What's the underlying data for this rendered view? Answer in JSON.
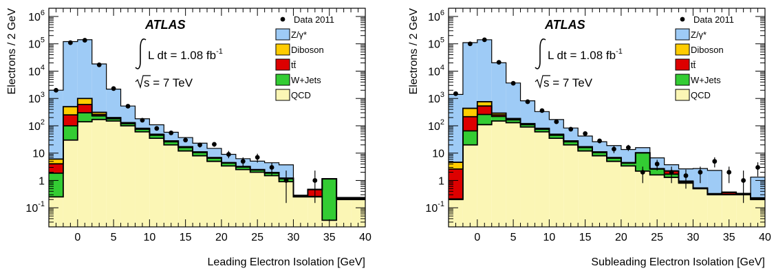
{
  "chart_data": [
    {
      "type": "bar",
      "stacked": true,
      "histogram": true,
      "bin_width": 2,
      "x": [
        -3,
        -1,
        1,
        3,
        5,
        7,
        9,
        11,
        13,
        15,
        17,
        19,
        21,
        23,
        25,
        27,
        29,
        31,
        33,
        35,
        37,
        39
      ],
      "xlabel": "Leading Electron Isolation [GeV]",
      "ylabel": "Electrons / 2 GeV",
      "xlim": [
        -4,
        40
      ],
      "ylim": [
        0.02,
        2000000
      ],
      "log_y": true,
      "x_ticks": [
        0,
        5,
        10,
        15,
        20,
        25,
        30,
        35,
        40
      ],
      "x_tick_labels": [
        "0",
        "5",
        "10",
        "15",
        "20",
        "25",
        "30",
        "35",
        "40"
      ],
      "y_tick_labels": [
        {
          "value": 1000000,
          "mantissa": "10",
          "exp": "6"
        },
        {
          "value": 100000,
          "mantissa": "10",
          "exp": "5"
        },
        {
          "value": 10000,
          "mantissa": "10",
          "exp": "4"
        },
        {
          "value": 1000,
          "mantissa": "10",
          "exp": "3"
        },
        {
          "value": 100,
          "mantissa": "10",
          "exp": "2"
        },
        {
          "value": 10,
          "mantissa": "10",
          "exp": ""
        },
        {
          "value": 1,
          "mantissa": "1",
          "exp": ""
        },
        {
          "value": 0.1,
          "mantissa": "10",
          "exp": "-1"
        }
      ],
      "series": [
        {
          "name": "QCD",
          "color": "#fbf6b5",
          "values": [
            0.25,
            30,
            140,
            170,
            150,
            100,
            60,
            35,
            20,
            12,
            8,
            5,
            3.4,
            2.5,
            2.0,
            1.5,
            0.9,
            0.25,
            0.25,
            0.035,
            0.2,
            0.2
          ]
        },
        {
          "name": "W+Jets",
          "color": "#33cc33",
          "values": [
            1.6,
            70,
            160,
            60,
            30,
            20,
            15,
            10,
            6,
            4,
            2.5,
            1.5,
            0.9,
            0.6,
            0.4,
            0.35,
            0.25,
            0.01,
            0.01,
            1.1,
            0.01,
            0.01
          ]
        },
        {
          "name": "tt̄",
          "color": "#dd0000",
          "values": [
            2.2,
            150,
            300,
            30,
            10,
            5,
            3,
            2,
            1,
            0.6,
            0.3,
            0.2,
            0.1,
            0.05,
            0.05,
            0.05,
            0.02,
            0.01,
            0.2,
            0.01,
            0.01,
            0.01
          ]
        },
        {
          "name": "Diboson",
          "color": "#ffcc00",
          "values": [
            2.0,
            250,
            400,
            50,
            10,
            5,
            3,
            2,
            1,
            0.5,
            0.3,
            0.2,
            0.1,
            0.1,
            0.05,
            0.05,
            0.05,
            0.01,
            0.01,
            0.01,
            0.01,
            0.01
          ]
        },
        {
          "name": "Z/γ*",
          "color": "#9ecbf6",
          "values": [
            2000,
            120000,
            140000,
            18000,
            2000,
            400,
            100,
            60,
            30,
            20,
            12,
            8,
            4.5,
            3,
            2.6,
            2.5,
            2.5,
            0.01,
            0.01,
            0.01,
            0.01,
            0.01
          ]
        }
      ],
      "data_series": {
        "name": "Data 2011",
        "x": [
          -3,
          -1,
          1,
          3,
          5,
          7,
          9,
          11,
          13,
          15,
          17,
          19,
          21,
          23,
          25,
          27,
          29,
          33
        ],
        "y": [
          2000,
          110000,
          135000,
          17000,
          2300,
          520,
          160,
          80,
          55,
          30,
          20,
          21,
          9,
          5,
          7,
          3,
          1,
          1
        ],
        "y_lo": [
          1900,
          109000,
          134000,
          16800,
          2250,
          500,
          148,
          72,
          48,
          25,
          16,
          17,
          6.5,
          3,
          4.5,
          1.5,
          0.15,
          0.15
        ],
        "y_hi": [
          2100,
          111000,
          136000,
          17200,
          2350,
          540,
          172,
          88,
          62,
          35,
          24,
          25,
          12,
          7,
          9.5,
          4.5,
          2.3,
          2.3
        ]
      },
      "legend": {
        "position": "top-right",
        "entries": [
          "Data 2011",
          "Z/γ*",
          "Diboson",
          "tt̄",
          "W+Jets",
          "QCD"
        ]
      },
      "annotations": {
        "experiment": "ATLAS",
        "luminosity": "L dt = 1.08 fb",
        "lumi_exp": "-1",
        "energy": "s = 7 TeV"
      }
    },
    {
      "type": "bar",
      "stacked": true,
      "histogram": true,
      "bin_width": 2,
      "x": [
        -3,
        -1,
        1,
        3,
        5,
        7,
        9,
        11,
        13,
        15,
        17,
        19,
        21,
        23,
        25,
        27,
        29,
        31,
        33,
        35,
        37,
        39
      ],
      "xlabel": "Subleading Electron Isolation [GeV]",
      "ylabel": "Electrons / 2 GeV",
      "xlim": [
        -4,
        40
      ],
      "ylim": [
        0.02,
        2000000
      ],
      "log_y": true,
      "x_ticks": [
        0,
        5,
        10,
        15,
        20,
        25,
        30,
        35,
        40
      ],
      "x_tick_labels": [
        "0",
        "5",
        "10",
        "15",
        "20",
        "25",
        "30",
        "35",
        "40"
      ],
      "y_tick_labels": [
        {
          "value": 1000000,
          "mantissa": "10",
          "exp": "6"
        },
        {
          "value": 100000,
          "mantissa": "10",
          "exp": "5"
        },
        {
          "value": 10000,
          "mantissa": "10",
          "exp": "4"
        },
        {
          "value": 1000,
          "mantissa": "10",
          "exp": "3"
        },
        {
          "value": 100,
          "mantissa": "10",
          "exp": "2"
        },
        {
          "value": 10,
          "mantissa": "10",
          "exp": ""
        },
        {
          "value": 1,
          "mantissa": "1",
          "exp": ""
        },
        {
          "value": 0.1,
          "mantissa": "10",
          "exp": "-1"
        }
      ],
      "series": [
        {
          "name": "QCD",
          "color": "#fbf6b5",
          "values": [
            0.2,
            20,
            110,
            150,
            130,
            90,
            60,
            35,
            20,
            12,
            8,
            5,
            3.4,
            2.2,
            1.6,
            1.3,
            0.8,
            0.5,
            0.3,
            0.3,
            0.3,
            0.2
          ]
        },
        {
          "name": "W+Jets",
          "color": "#33cc33",
          "values": [
            0.01,
            45,
            150,
            70,
            35,
            20,
            15,
            10,
            6,
            4,
            2.5,
            1.5,
            0.9,
            8,
            1,
            0.4,
            0.05,
            0.01,
            0.01,
            0.01,
            0.01,
            0.01
          ]
        },
        {
          "name": "tt̄",
          "color": "#dd0000",
          "values": [
            2.4,
            150,
            270,
            30,
            10,
            5,
            3,
            2,
            1,
            0.6,
            0.3,
            0.2,
            0.1,
            0.05,
            0.05,
            0.5,
            0.05,
            0.01,
            0.01,
            0.05,
            0.01,
            0.01
          ]
        },
        {
          "name": "Diboson",
          "color": "#ffcc00",
          "values": [
            2.0,
            220,
            230,
            40,
            10,
            5,
            3,
            2,
            1,
            0.5,
            0.3,
            0.2,
            0.1,
            0.1,
            0.05,
            0.05,
            0.05,
            0.01,
            0.01,
            0.01,
            0.01,
            0.01
          ]
        },
        {
          "name": "Z/γ*",
          "color": "#9ecbf6",
          "values": [
            1400,
            110000,
            140000,
            20000,
            3500,
            700,
            250,
            120,
            55,
            25,
            15,
            12,
            9,
            5.5,
            4,
            1.5,
            1.7,
            2.2,
            2.0,
            0.01,
            0.01,
            1.1
          ]
        }
      ],
      "data_series": {
        "name": "Data 2011",
        "x": [
          -3,
          -1,
          1,
          3,
          5,
          7,
          9,
          11,
          13,
          15,
          17,
          19,
          21,
          23,
          25,
          27,
          29,
          31,
          33,
          35,
          37,
          39
        ],
        "y": [
          1500,
          100000,
          140000,
          21000,
          3600,
          760,
          360,
          140,
          75,
          52,
          28,
          14,
          16,
          2,
          4,
          2,
          1.5,
          2,
          5,
          2,
          1,
          3
        ],
        "y_lo": [
          1400,
          99000,
          139000,
          20800,
          3500,
          740,
          345,
          130,
          68,
          45,
          23,
          10,
          12,
          0.8,
          2.3,
          0.8,
          0.5,
          0.8,
          3,
          0.8,
          0.15,
          1.4
        ],
        "y_hi": [
          1600,
          101000,
          141000,
          21200,
          3700,
          780,
          375,
          150,
          82,
          59,
          33,
          18,
          20,
          3.2,
          5.7,
          3.2,
          2.5,
          3.2,
          7,
          3.2,
          2.3,
          4.6
        ]
      },
      "legend": {
        "position": "top-right",
        "entries": [
          "Data 2011",
          "Z/γ*",
          "Diboson",
          "tt̄",
          "W+Jets",
          "QCD"
        ]
      },
      "annotations": {
        "experiment": "ATLAS",
        "luminosity": "L dt = 1.08 fb",
        "lumi_exp": "-1",
        "energy": "s = 7 TeV"
      }
    }
  ]
}
